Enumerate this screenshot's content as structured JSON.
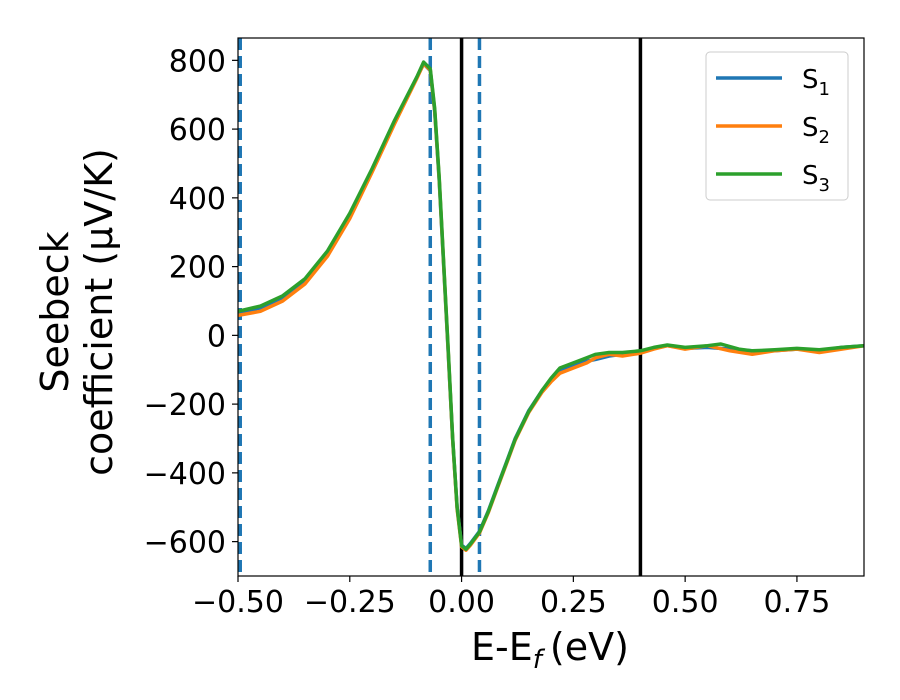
{
  "chart_data": {
    "type": "line",
    "title": "",
    "xlabel": "E-E",
    "xlabel_sub": "f",
    "xlabel_unit": "(eV)",
    "ylabel_line1": "Seebeck",
    "ylabel_line2": "coefficient  (μV/K)",
    "xlim": [
      -0.5,
      0.9
    ],
    "ylim": [
      -700,
      865
    ],
    "xticks": [
      -0.5,
      -0.25,
      0.0,
      0.25,
      0.5,
      0.75
    ],
    "xtick_labels": [
      "−0.50",
      "−0.25",
      "0.00",
      "0.25",
      "0.50",
      "0.75"
    ],
    "yticks": [
      -600,
      -400,
      -200,
      0,
      200,
      400,
      600,
      800
    ],
    "ytick_labels": [
      "−600",
      "−400",
      "−200",
      "0",
      "200",
      "400",
      "600",
      "800"
    ],
    "grid": false,
    "legend_position": "top-right",
    "vlines": [
      {
        "x": -0.495,
        "style": "dashed",
        "color": "#1f77b4"
      },
      {
        "x": -0.07,
        "style": "dashed",
        "color": "#1f77b4"
      },
      {
        "x": 0.04,
        "style": "dashed",
        "color": "#1f77b4"
      },
      {
        "x": 0.0,
        "style": "solid",
        "color": "#000000"
      },
      {
        "x": 0.4,
        "style": "solid",
        "color": "#000000"
      }
    ],
    "series": [
      {
        "name": "S",
        "name_sub": "1",
        "color": "#1f77b4",
        "points": [
          [
            -0.5,
            65
          ],
          [
            -0.45,
            80
          ],
          [
            -0.4,
            110
          ],
          [
            -0.35,
            160
          ],
          [
            -0.3,
            240
          ],
          [
            -0.25,
            350
          ],
          [
            -0.2,
            480
          ],
          [
            -0.15,
            620
          ],
          [
            -0.1,
            750
          ],
          [
            -0.085,
            790
          ],
          [
            -0.07,
            770
          ],
          [
            -0.06,
            650
          ],
          [
            -0.05,
            450
          ],
          [
            -0.04,
            200
          ],
          [
            -0.03,
            -50
          ],
          [
            -0.02,
            -300
          ],
          [
            -0.01,
            -500
          ],
          [
            0.0,
            -610
          ],
          [
            0.01,
            -620
          ],
          [
            0.02,
            -605
          ],
          [
            0.04,
            -570
          ],
          [
            0.06,
            -510
          ],
          [
            0.08,
            -440
          ],
          [
            0.1,
            -370
          ],
          [
            0.12,
            -300
          ],
          [
            0.15,
            -220
          ],
          [
            0.18,
            -160
          ],
          [
            0.2,
            -130
          ],
          [
            0.22,
            -105
          ],
          [
            0.25,
            -85
          ],
          [
            0.28,
            -75
          ],
          [
            0.3,
            -70
          ],
          [
            0.33,
            -60
          ],
          [
            0.36,
            -55
          ],
          [
            0.4,
            -50
          ],
          [
            0.43,
            -38
          ],
          [
            0.46,
            -30
          ],
          [
            0.5,
            -38
          ],
          [
            0.55,
            -35
          ],
          [
            0.6,
            -40
          ],
          [
            0.65,
            -45
          ],
          [
            0.7,
            -45
          ],
          [
            0.75,
            -40
          ],
          [
            0.8,
            -45
          ],
          [
            0.85,
            -35
          ],
          [
            0.9,
            -30
          ]
        ]
      },
      {
        "name": "S",
        "name_sub": "2",
        "color": "#ff7f0e",
        "points": [
          [
            -0.5,
            58
          ],
          [
            -0.45,
            70
          ],
          [
            -0.4,
            100
          ],
          [
            -0.35,
            150
          ],
          [
            -0.3,
            230
          ],
          [
            -0.25,
            340
          ],
          [
            -0.2,
            475
          ],
          [
            -0.15,
            615
          ],
          [
            -0.1,
            748
          ],
          [
            -0.085,
            790
          ],
          [
            -0.07,
            772
          ],
          [
            -0.06,
            655
          ],
          [
            -0.05,
            455
          ],
          [
            -0.04,
            205
          ],
          [
            -0.03,
            -45
          ],
          [
            -0.02,
            -300
          ],
          [
            -0.01,
            -505
          ],
          [
            0.0,
            -615
          ],
          [
            0.01,
            -625
          ],
          [
            0.02,
            -610
          ],
          [
            0.04,
            -575
          ],
          [
            0.06,
            -515
          ],
          [
            0.08,
            -445
          ],
          [
            0.1,
            -375
          ],
          [
            0.12,
            -305
          ],
          [
            0.15,
            -225
          ],
          [
            0.18,
            -165
          ],
          [
            0.2,
            -135
          ],
          [
            0.22,
            -110
          ],
          [
            0.25,
            -95
          ],
          [
            0.28,
            -80
          ],
          [
            0.3,
            -65
          ],
          [
            0.33,
            -55
          ],
          [
            0.36,
            -60
          ],
          [
            0.4,
            -52
          ],
          [
            0.43,
            -40
          ],
          [
            0.46,
            -30
          ],
          [
            0.5,
            -40
          ],
          [
            0.55,
            -30
          ],
          [
            0.6,
            -45
          ],
          [
            0.65,
            -55
          ],
          [
            0.7,
            -45
          ],
          [
            0.75,
            -40
          ],
          [
            0.8,
            -50
          ],
          [
            0.85,
            -40
          ],
          [
            0.9,
            -30
          ]
        ]
      },
      {
        "name": "S",
        "name_sub": "3",
        "color": "#2ca02c",
        "points": [
          [
            -0.5,
            70
          ],
          [
            -0.45,
            85
          ],
          [
            -0.4,
            115
          ],
          [
            -0.35,
            165
          ],
          [
            -0.3,
            245
          ],
          [
            -0.25,
            355
          ],
          [
            -0.2,
            485
          ],
          [
            -0.15,
            625
          ],
          [
            -0.1,
            752
          ],
          [
            -0.085,
            795
          ],
          [
            -0.07,
            775
          ],
          [
            -0.06,
            660
          ],
          [
            -0.05,
            460
          ],
          [
            -0.04,
            210
          ],
          [
            -0.03,
            -40
          ],
          [
            -0.02,
            -295
          ],
          [
            -0.01,
            -500
          ],
          [
            0.0,
            -612
          ],
          [
            0.01,
            -622
          ],
          [
            0.02,
            -607
          ],
          [
            0.04,
            -572
          ],
          [
            0.06,
            -512
          ],
          [
            0.08,
            -442
          ],
          [
            0.1,
            -372
          ],
          [
            0.12,
            -302
          ],
          [
            0.15,
            -222
          ],
          [
            0.18,
            -160
          ],
          [
            0.2,
            -125
          ],
          [
            0.22,
            -95
          ],
          [
            0.25,
            -80
          ],
          [
            0.28,
            -65
          ],
          [
            0.3,
            -55
          ],
          [
            0.33,
            -50
          ],
          [
            0.36,
            -50
          ],
          [
            0.4,
            -45
          ],
          [
            0.43,
            -35
          ],
          [
            0.46,
            -28
          ],
          [
            0.5,
            -35
          ],
          [
            0.55,
            -30
          ],
          [
            0.58,
            -25
          ],
          [
            0.62,
            -40
          ],
          [
            0.65,
            -45
          ],
          [
            0.7,
            -42
          ],
          [
            0.75,
            -38
          ],
          [
            0.8,
            -42
          ],
          [
            0.85,
            -35
          ],
          [
            0.9,
            -30
          ]
        ]
      }
    ]
  }
}
